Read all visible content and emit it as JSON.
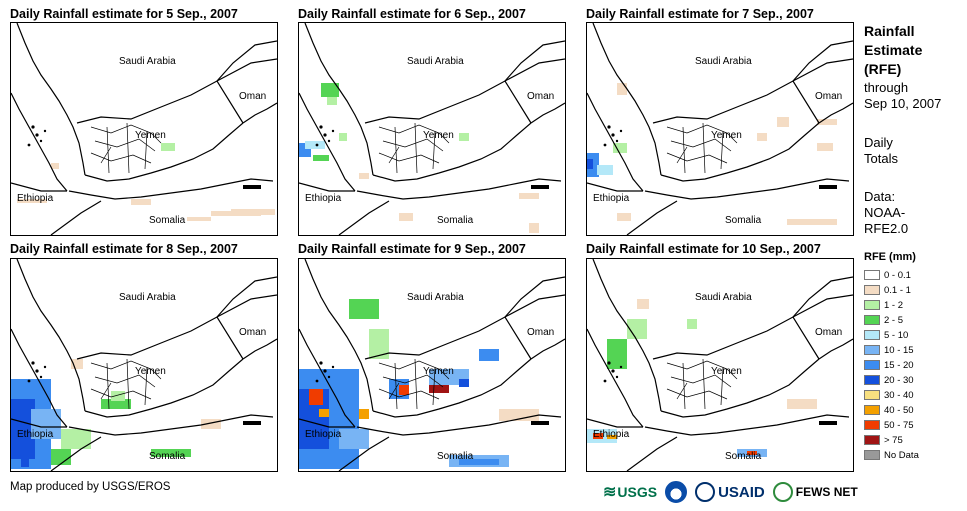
{
  "panels": [
    {
      "title": "Daily Rainfall estimate for 5 Sep., 2007",
      "day": 5
    },
    {
      "title": "Daily Rainfall estimate for 6 Sep., 2007",
      "day": 6
    },
    {
      "title": "Daily Rainfall estimate for 7 Sep., 2007",
      "day": 7
    },
    {
      "title": "Daily Rainfall estimate for 8 Sep., 2007",
      "day": 8
    },
    {
      "title": "Daily Rainfall estimate for 9 Sep., 2007",
      "day": 9
    },
    {
      "title": "Daily Rainfall estimate for 10 Sep., 2007",
      "day": 10
    }
  ],
  "country_labels": {
    "saudi": "Saudi Arabia",
    "oman": "Oman",
    "yemen": "Yemen",
    "ethiopia": "Ethiopia",
    "somalia": "Somalia"
  },
  "sidebar": {
    "title_line1": "Rainfall",
    "title_line2": "Estimate",
    "title_line3": "(RFE)",
    "through_line1": "through",
    "through_line2": "Sep 10, 2007",
    "daily_line1": "Daily",
    "daily_line2": "Totals",
    "data_line1": "Data:",
    "data_line2": "NOAA-",
    "data_line3": "RFE2.0"
  },
  "legend": {
    "title": "RFE (mm)",
    "items": [
      {
        "label": "0 - 0.1",
        "color": "#ffffff"
      },
      {
        "label": "0.1 - 1",
        "color": "#f4dcc4"
      },
      {
        "label": "1 - 2",
        "color": "#b4f0a4"
      },
      {
        "label": "2 - 5",
        "color": "#54d454"
      },
      {
        "label": "5 - 10",
        "color": "#b4e8f8"
      },
      {
        "label": "10 - 15",
        "color": "#78b4f4"
      },
      {
        "label": "15 - 20",
        "color": "#3c8cf0"
      },
      {
        "label": "20 - 30",
        "color": "#1450dc"
      },
      {
        "label": "30 - 40",
        "color": "#f8e080"
      },
      {
        "label": "40 - 50",
        "color": "#f4a000"
      },
      {
        "label": "50 - 75",
        "color": "#f03c00"
      },
      {
        "label": "> 75",
        "color": "#a01414"
      },
      {
        "label": "No Data",
        "color": "#999999"
      }
    ]
  },
  "credit": "Map produced by USGS/EROS",
  "logos": {
    "usgs": "USGS",
    "usaid": "USAID",
    "fewsnet": "FEWS NET"
  }
}
